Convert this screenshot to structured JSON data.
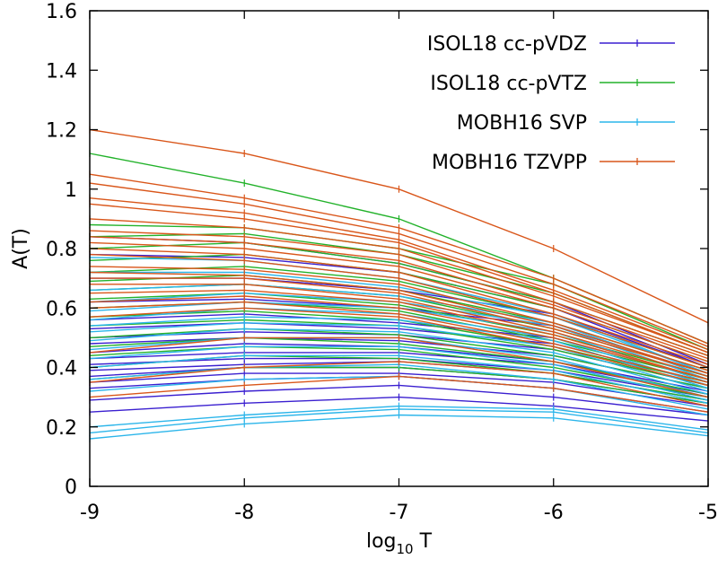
{
  "chart_data": {
    "type": "line",
    "title": "",
    "xlabel": {
      "base": "log",
      "subscript": "10",
      "suffix": " T"
    },
    "ylabel": "A(T)",
    "x": [
      -9,
      -8,
      -7,
      -6,
      -5
    ],
    "xlim": [
      -9,
      -5
    ],
    "ylim": [
      0,
      1.6
    ],
    "xticks": [
      "-9",
      "-8",
      "-7",
      "-6",
      "-5"
    ],
    "yticks": [
      "0",
      "0.2",
      "0.4",
      "0.6",
      "0.8",
      "1",
      "1.2",
      "1.4",
      "1.6"
    ],
    "grid": false,
    "legend_position": "top-right",
    "series": [
      {
        "name": "ISOL18 cc-pVDZ",
        "color": "#3a1fd0",
        "lines": [
          [
            0.25,
            0.28,
            0.3,
            0.27,
            0.22
          ],
          [
            0.29,
            0.32,
            0.34,
            0.3,
            0.24
          ],
          [
            0.33,
            0.36,
            0.37,
            0.33,
            0.25
          ],
          [
            0.35,
            0.38,
            0.38,
            0.35,
            0.27
          ],
          [
            0.37,
            0.4,
            0.4,
            0.36,
            0.28
          ],
          [
            0.39,
            0.41,
            0.42,
            0.38,
            0.29
          ],
          [
            0.41,
            0.43,
            0.43,
            0.39,
            0.3
          ],
          [
            0.43,
            0.45,
            0.45,
            0.41,
            0.31
          ],
          [
            0.45,
            0.48,
            0.47,
            0.42,
            0.32
          ],
          [
            0.48,
            0.5,
            0.49,
            0.44,
            0.33
          ],
          [
            0.5,
            0.52,
            0.51,
            0.46,
            0.34
          ],
          [
            0.53,
            0.55,
            0.53,
            0.48,
            0.35
          ],
          [
            0.56,
            0.58,
            0.55,
            0.5,
            0.36
          ],
          [
            0.62,
            0.63,
            0.6,
            0.54,
            0.38
          ],
          [
            0.7,
            0.7,
            0.66,
            0.58,
            0.4
          ],
          [
            0.78,
            0.77,
            0.72,
            0.6,
            0.4
          ],
          [
            0.84,
            0.82,
            0.75,
            0.62,
            0.41
          ]
        ]
      },
      {
        "name": "ISOL18 cc-pVTZ",
        "color": "#22b22a",
        "lines": [
          [
            1.12,
            1.02,
            0.9,
            0.7,
            0.48
          ],
          [
            0.88,
            0.87,
            0.8,
            0.68,
            0.46
          ],
          [
            0.84,
            0.85,
            0.78,
            0.65,
            0.45
          ],
          [
            0.8,
            0.82,
            0.75,
            0.62,
            0.44
          ],
          [
            0.76,
            0.78,
            0.72,
            0.6,
            0.42
          ],
          [
            0.72,
            0.74,
            0.69,
            0.57,
            0.4
          ],
          [
            0.69,
            0.71,
            0.66,
            0.55,
            0.39
          ],
          [
            0.66,
            0.68,
            0.64,
            0.53,
            0.38
          ],
          [
            0.63,
            0.65,
            0.61,
            0.51,
            0.37
          ],
          [
            0.6,
            0.62,
            0.59,
            0.49,
            0.36
          ],
          [
            0.57,
            0.59,
            0.56,
            0.47,
            0.35
          ],
          [
            0.54,
            0.56,
            0.54,
            0.46,
            0.34
          ],
          [
            0.5,
            0.53,
            0.51,
            0.44,
            0.33
          ],
          [
            0.47,
            0.5,
            0.48,
            0.42,
            0.31
          ],
          [
            0.44,
            0.47,
            0.46,
            0.4,
            0.3
          ],
          [
            0.4,
            0.44,
            0.43,
            0.38,
            0.29
          ],
          [
            0.36,
            0.4,
            0.4,
            0.36,
            0.28
          ]
        ]
      },
      {
        "name": "MOBH16 SVP",
        "color": "#2bb5ea",
        "lines": [
          [
            0.16,
            0.21,
            0.24,
            0.23,
            0.17
          ],
          [
            0.18,
            0.23,
            0.26,
            0.25,
            0.18
          ],
          [
            0.2,
            0.24,
            0.27,
            0.26,
            0.19
          ],
          [
            0.32,
            0.36,
            0.37,
            0.33,
            0.24
          ],
          [
            0.36,
            0.4,
            0.41,
            0.36,
            0.26
          ],
          [
            0.4,
            0.44,
            0.44,
            0.39,
            0.28
          ],
          [
            0.43,
            0.47,
            0.47,
            0.41,
            0.29
          ],
          [
            0.46,
            0.5,
            0.5,
            0.43,
            0.3
          ],
          [
            0.49,
            0.53,
            0.52,
            0.45,
            0.31
          ],
          [
            0.52,
            0.55,
            0.54,
            0.47,
            0.32
          ],
          [
            0.54,
            0.57,
            0.56,
            0.49,
            0.33
          ],
          [
            0.56,
            0.6,
            0.58,
            0.5,
            0.34
          ],
          [
            0.59,
            0.62,
            0.6,
            0.52,
            0.35
          ],
          [
            0.62,
            0.65,
            0.62,
            0.54,
            0.36
          ],
          [
            0.66,
            0.68,
            0.64,
            0.55,
            0.37
          ],
          [
            0.72,
            0.72,
            0.67,
            0.57,
            0.38
          ],
          [
            0.77,
            0.76,
            0.7,
            0.58,
            0.38
          ]
        ]
      },
      {
        "name": "MOBH16 TZVPP",
        "color": "#d9561a",
        "lines": [
          [
            1.2,
            1.12,
            1.0,
            0.8,
            0.55
          ],
          [
            1.05,
            0.97,
            0.87,
            0.7,
            0.48
          ],
          [
            1.02,
            0.95,
            0.85,
            0.68,
            0.47
          ],
          [
            0.97,
            0.92,
            0.83,
            0.66,
            0.46
          ],
          [
            0.95,
            0.9,
            0.82,
            0.65,
            0.45
          ],
          [
            0.9,
            0.87,
            0.8,
            0.64,
            0.45
          ],
          [
            0.86,
            0.84,
            0.78,
            0.62,
            0.44
          ],
          [
            0.84,
            0.82,
            0.76,
            0.61,
            0.43
          ],
          [
            0.82,
            0.8,
            0.74,
            0.6,
            0.42
          ],
          [
            0.8,
            0.78,
            0.72,
            0.58,
            0.41
          ],
          [
            0.78,
            0.76,
            0.7,
            0.57,
            0.4
          ],
          [
            0.74,
            0.73,
            0.68,
            0.55,
            0.39
          ],
          [
            0.72,
            0.71,
            0.66,
            0.54,
            0.38
          ],
          [
            0.7,
            0.7,
            0.65,
            0.53,
            0.38
          ],
          [
            0.68,
            0.68,
            0.63,
            0.52,
            0.37
          ],
          [
            0.65,
            0.66,
            0.62,
            0.51,
            0.36
          ],
          [
            0.62,
            0.64,
            0.6,
            0.5,
            0.36
          ],
          [
            0.6,
            0.62,
            0.58,
            0.48,
            0.35
          ],
          [
            0.57,
            0.6,
            0.57,
            0.47,
            0.34
          ],
          [
            0.45,
            0.5,
            0.5,
            0.42,
            0.3
          ],
          [
            0.35,
            0.4,
            0.42,
            0.38,
            0.27
          ],
          [
            0.3,
            0.34,
            0.37,
            0.33,
            0.25
          ]
        ]
      }
    ]
  }
}
